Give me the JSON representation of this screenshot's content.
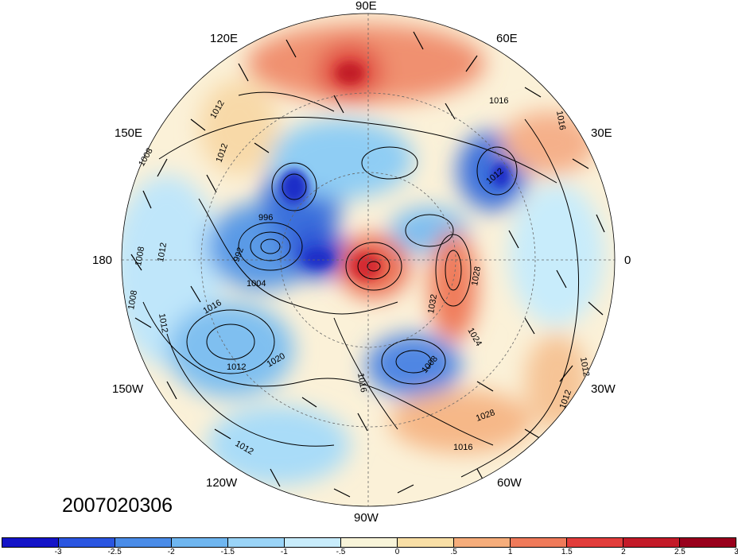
{
  "timestamp": "2007020306",
  "longitude_labels": [
    {
      "text": "90E",
      "name": "lon-label-90e"
    },
    {
      "text": "60E",
      "name": "lon-label-60e"
    },
    {
      "text": "120E",
      "name": "lon-label-120e"
    },
    {
      "text": "30E",
      "name": "lon-label-30e"
    },
    {
      "text": "150E",
      "name": "lon-label-150e"
    },
    {
      "text": "180",
      "name": "lon-label-180"
    },
    {
      "text": "0",
      "name": "lon-label-0"
    },
    {
      "text": "150W",
      "name": "lon-label-150w"
    },
    {
      "text": "30W",
      "name": "lon-label-30w"
    },
    {
      "text": "120W",
      "name": "lon-label-120w"
    },
    {
      "text": "60W",
      "name": "lon-label-60w"
    },
    {
      "text": "90W",
      "name": "lon-label-90w"
    }
  ],
  "contour_labels": [
    "1016",
    "1016",
    "1012",
    "1012",
    "1008",
    "1012",
    "996",
    "1012",
    "1008",
    "1008",
    "1012",
    "992",
    "1004",
    "1016",
    "1012",
    "1020",
    "1028",
    "1032",
    "1024",
    "1008",
    "1016",
    "1012",
    "1012",
    "1028",
    "1016",
    "1012"
  ],
  "colorbar": {
    "colors": [
      "#1414c8",
      "#2a55e0",
      "#4a8ce8",
      "#6fb6f0",
      "#9ad4f7",
      "#c8ecfb",
      "#f8f4d9",
      "#f9dfa6",
      "#f6ad7b",
      "#ef7a5a",
      "#e23d3b",
      "#c31a28",
      "#99001c"
    ],
    "tick_labels": [
      "-3",
      "-2.5",
      "-2",
      "-1.5",
      "-1",
      "-.5",
      "0",
      ".5",
      "1",
      "1.5",
      "2",
      "2.5",
      "3"
    ]
  }
}
